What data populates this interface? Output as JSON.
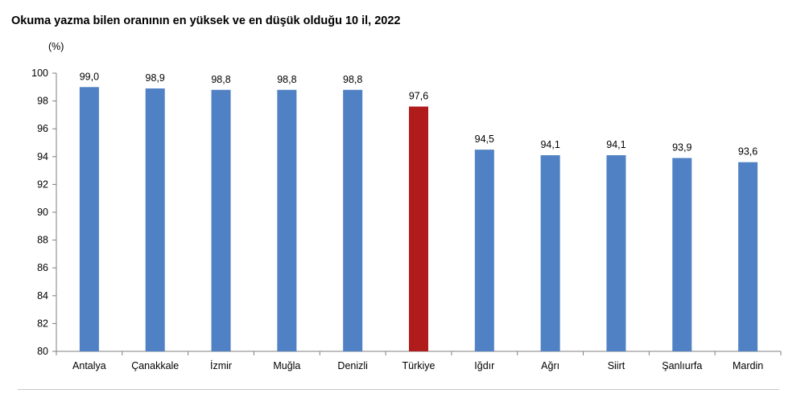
{
  "chart_data": {
    "type": "bar",
    "title": "Okuma yazma bilen oranının en yüksek ve en düşük olduğu 10 il, 2022",
    "unit_label": "(%)",
    "categories": [
      "Antalya",
      "Çanakkale",
      "İzmir",
      "Muğla",
      "Denizli",
      "Türkiye",
      "Iğdır",
      "Ağrı",
      "Siirt",
      "Şanlıurfa",
      "Mardin"
    ],
    "values": [
      99.0,
      98.9,
      98.8,
      98.8,
      98.8,
      97.6,
      94.5,
      94.1,
      94.1,
      93.9,
      93.6
    ],
    "value_labels": [
      "99,0",
      "98,9",
      "98,8",
      "98,8",
      "98,8",
      "97,6",
      "94,5",
      "94,1",
      "94,1",
      "93,9",
      "93,6"
    ],
    "ylim": [
      80,
      100
    ],
    "yticks": [
      80,
      82,
      84,
      86,
      88,
      90,
      92,
      94,
      96,
      98,
      100
    ],
    "grid": false,
    "legend": "none",
    "colors": {
      "default_bar": "#4f81c4",
      "highlight_bar": "#b01c1c",
      "highlight_category": "Türkiye",
      "axis": "#7f7f7f"
    }
  }
}
